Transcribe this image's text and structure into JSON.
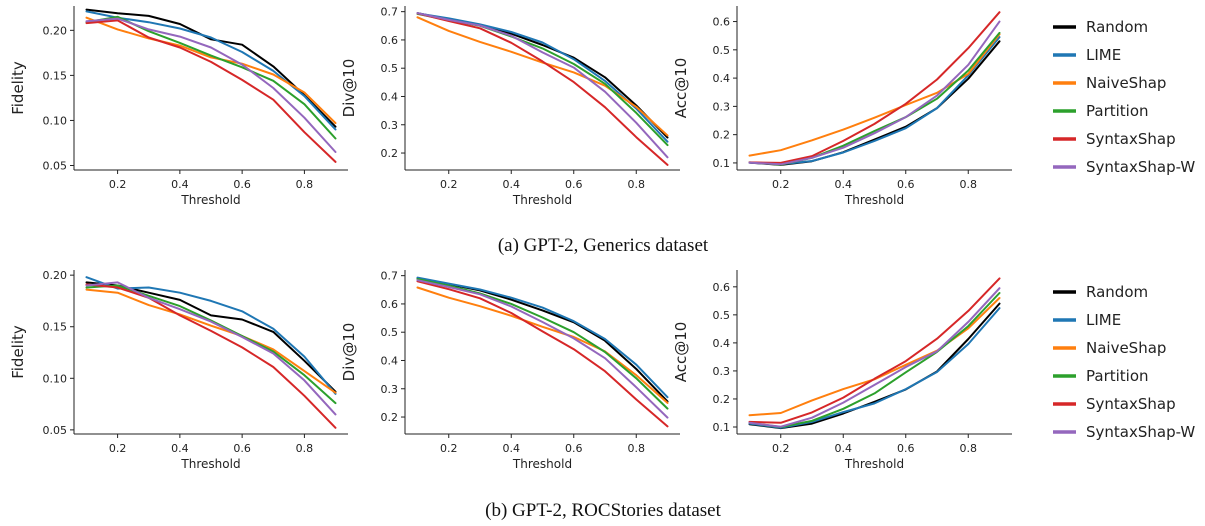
{
  "captions": [
    "(a) GPT-2, Generics dataset",
    "(b) GPT-2, ROCStories dataset"
  ],
  "colors": {
    "Random": "#000000",
    "LIME": "#1f77b4",
    "NaiveShap": "#ff7f0e",
    "Partition": "#2ca02c",
    "SyntaxShap": "#d62728",
    "SyntaxShap-W": "#9467bd"
  },
  "legend": [
    "Random",
    "LIME",
    "NaiveShap",
    "Partition",
    "SyntaxShap",
    "SyntaxShap-W"
  ],
  "chart_data": [
    {
      "type": "line",
      "panel": "a-fidelity",
      "xlabel": "Threshold",
      "ylabel": "Fidelity",
      "x": [
        0.1,
        0.2,
        0.3,
        0.4,
        0.5,
        0.6,
        0.7,
        0.8,
        0.9
      ],
      "xticks": [
        0.2,
        0.4,
        0.6,
        0.8
      ],
      "yticks": [
        0.05,
        0.1,
        0.15,
        0.2
      ],
      "ylim": [
        0.045,
        0.227
      ],
      "series": [
        {
          "name": "Random",
          "values": [
            0.223,
            0.219,
            0.216,
            0.207,
            0.19,
            0.184,
            0.16,
            0.128,
            0.093
          ]
        },
        {
          "name": "LIME",
          "values": [
            0.221,
            0.214,
            0.209,
            0.202,
            0.192,
            0.176,
            0.155,
            0.127,
            0.09
          ]
        },
        {
          "name": "NaiveShap",
          "values": [
            0.214,
            0.201,
            0.191,
            0.183,
            0.17,
            0.163,
            0.151,
            0.131,
            0.097
          ]
        },
        {
          "name": "Partition",
          "values": [
            0.209,
            0.215,
            0.199,
            0.186,
            0.172,
            0.159,
            0.144,
            0.118,
            0.08
          ]
        },
        {
          "name": "SyntaxShap",
          "values": [
            0.208,
            0.211,
            0.192,
            0.181,
            0.165,
            0.145,
            0.123,
            0.087,
            0.054
          ]
        },
        {
          "name": "SyntaxShap-W",
          "values": [
            0.21,
            0.213,
            0.201,
            0.193,
            0.181,
            0.162,
            0.136,
            0.103,
            0.065
          ]
        }
      ]
    },
    {
      "type": "line",
      "panel": "a-div",
      "xlabel": "Threshold",
      "ylabel": "Div@10",
      "x": [
        0.1,
        0.2,
        0.3,
        0.4,
        0.5,
        0.6,
        0.7,
        0.8,
        0.9
      ],
      "xticks": [
        0.2,
        0.4,
        0.6,
        0.8
      ],
      "yticks": [
        0.2,
        0.3,
        0.4,
        0.5,
        0.6,
        0.7
      ],
      "ylim": [
        0.14,
        0.72
      ],
      "series": [
        {
          "name": "Random",
          "values": [
            0.695,
            0.672,
            0.653,
            0.622,
            0.582,
            0.537,
            0.468,
            0.368,
            0.255
          ]
        },
        {
          "name": "LIME",
          "values": [
            0.694,
            0.676,
            0.655,
            0.628,
            0.591,
            0.532,
            0.455,
            0.357,
            0.24
          ]
        },
        {
          "name": "NaiveShap",
          "values": [
            0.68,
            0.632,
            0.593,
            0.558,
            0.52,
            0.485,
            0.438,
            0.363,
            0.262
          ]
        },
        {
          "name": "Partition",
          "values": [
            0.692,
            0.67,
            0.65,
            0.612,
            0.57,
            0.515,
            0.445,
            0.342,
            0.228
          ]
        },
        {
          "name": "SyntaxShap",
          "values": [
            0.694,
            0.667,
            0.641,
            0.59,
            0.524,
            0.451,
            0.362,
            0.256,
            0.158
          ]
        },
        {
          "name": "SyntaxShap-W",
          "values": [
            0.695,
            0.671,
            0.651,
            0.615,
            0.556,
            0.502,
            0.417,
            0.307,
            0.185
          ]
        }
      ]
    },
    {
      "type": "line",
      "panel": "a-acc",
      "xlabel": "Threshold",
      "ylabel": "Acc@10",
      "x": [
        0.1,
        0.2,
        0.3,
        0.4,
        0.5,
        0.6,
        0.7,
        0.8,
        0.9
      ],
      "xticks": [
        0.2,
        0.4,
        0.6,
        0.8
      ],
      "yticks": [
        0.1,
        0.2,
        0.3,
        0.4,
        0.5,
        0.6
      ],
      "ylim": [
        0.075,
        0.655
      ],
      "series": [
        {
          "name": "Random",
          "values": [
            0.101,
            0.093,
            0.106,
            0.138,
            0.183,
            0.228,
            0.294,
            0.398,
            0.53
          ]
        },
        {
          "name": "LIME",
          "values": [
            0.101,
            0.095,
            0.107,
            0.137,
            0.178,
            0.223,
            0.294,
            0.41,
            0.545
          ]
        },
        {
          "name": "NaiveShap",
          "values": [
            0.126,
            0.145,
            0.18,
            0.218,
            0.26,
            0.305,
            0.348,
            0.415,
            0.555
          ]
        },
        {
          "name": "Partition",
          "values": [
            0.102,
            0.094,
            0.118,
            0.161,
            0.213,
            0.262,
            0.327,
            0.427,
            0.56
          ]
        },
        {
          "name": "SyntaxShap",
          "values": [
            0.102,
            0.1,
            0.124,
            0.178,
            0.238,
            0.309,
            0.395,
            0.506,
            0.633
          ]
        },
        {
          "name": "SyntaxShap-W",
          "values": [
            0.101,
            0.095,
            0.118,
            0.154,
            0.205,
            0.262,
            0.338,
            0.447,
            0.6
          ]
        }
      ]
    },
    {
      "type": "line",
      "panel": "b-fidelity",
      "xlabel": "Threshold",
      "ylabel": "Fidelity",
      "x": [
        0.1,
        0.2,
        0.3,
        0.4,
        0.5,
        0.6,
        0.7,
        0.8,
        0.9
      ],
      "xticks": [
        0.2,
        0.4,
        0.6,
        0.8
      ],
      "yticks": [
        0.05,
        0.1,
        0.15,
        0.2
      ],
      "ylim": [
        0.046,
        0.205
      ],
      "series": [
        {
          "name": "Random",
          "values": [
            0.193,
            0.19,
            0.183,
            0.176,
            0.161,
            0.157,
            0.145,
            0.117,
            0.087
          ]
        },
        {
          "name": "LIME",
          "values": [
            0.198,
            0.187,
            0.188,
            0.183,
            0.175,
            0.165,
            0.148,
            0.121,
            0.085
          ]
        },
        {
          "name": "NaiveShap",
          "values": [
            0.186,
            0.183,
            0.171,
            0.162,
            0.151,
            0.141,
            0.128,
            0.107,
            0.086
          ]
        },
        {
          "name": "Partition",
          "values": [
            0.188,
            0.19,
            0.18,
            0.17,
            0.156,
            0.141,
            0.126,
            0.103,
            0.076
          ]
        },
        {
          "name": "SyntaxShap",
          "values": [
            0.191,
            0.188,
            0.178,
            0.161,
            0.146,
            0.13,
            0.111,
            0.083,
            0.052
          ]
        },
        {
          "name": "SyntaxShap-W",
          "values": [
            0.19,
            0.193,
            0.178,
            0.167,
            0.155,
            0.14,
            0.124,
            0.098,
            0.065
          ]
        }
      ]
    },
    {
      "type": "line",
      "panel": "b-div",
      "xlabel": "Threshold",
      "ylabel": "Div@10",
      "x": [
        0.1,
        0.2,
        0.3,
        0.4,
        0.5,
        0.6,
        0.7,
        0.8,
        0.9
      ],
      "xticks": [
        0.2,
        0.4,
        0.6,
        0.8
      ],
      "yticks": [
        0.2,
        0.3,
        0.4,
        0.5,
        0.6,
        0.7
      ],
      "ylim": [
        0.14,
        0.72
      ],
      "series": [
        {
          "name": "Random",
          "values": [
            0.69,
            0.67,
            0.648,
            0.615,
            0.577,
            0.535,
            0.47,
            0.37,
            0.255
          ]
        },
        {
          "name": "LIME",
          "values": [
            0.693,
            0.672,
            0.651,
            0.622,
            0.587,
            0.539,
            0.476,
            0.385,
            0.27
          ]
        },
        {
          "name": "NaiveShap",
          "values": [
            0.658,
            0.622,
            0.592,
            0.558,
            0.519,
            0.483,
            0.432,
            0.348,
            0.25
          ]
        },
        {
          "name": "Partition",
          "values": [
            0.688,
            0.665,
            0.637,
            0.6,
            0.552,
            0.5,
            0.43,
            0.337,
            0.23
          ]
        },
        {
          "name": "SyntaxShap",
          "values": [
            0.68,
            0.652,
            0.62,
            0.568,
            0.503,
            0.44,
            0.362,
            0.262,
            0.167
          ]
        },
        {
          "name": "SyntaxShap-W",
          "values": [
            0.684,
            0.66,
            0.634,
            0.591,
            0.536,
            0.478,
            0.408,
            0.305,
            0.198
          ]
        }
      ]
    },
    {
      "type": "line",
      "panel": "b-acc",
      "xlabel": "Threshold",
      "ylabel": "Acc@10",
      "x": [
        0.1,
        0.2,
        0.3,
        0.4,
        0.5,
        0.6,
        0.7,
        0.8,
        0.9
      ],
      "xticks": [
        0.2,
        0.4,
        0.6,
        0.8
      ],
      "yticks": [
        0.1,
        0.2,
        0.3,
        0.4,
        0.5,
        0.6
      ],
      "ylim": [
        0.075,
        0.66
      ],
      "series": [
        {
          "name": "Random",
          "values": [
            0.11,
            0.096,
            0.112,
            0.148,
            0.19,
            0.234,
            0.298,
            0.414,
            0.54
          ]
        },
        {
          "name": "LIME",
          "values": [
            0.112,
            0.097,
            0.118,
            0.153,
            0.184,
            0.235,
            0.296,
            0.396,
            0.524
          ]
        },
        {
          "name": "NaiveShap",
          "values": [
            0.142,
            0.15,
            0.195,
            0.235,
            0.27,
            0.322,
            0.372,
            0.452,
            0.56
          ]
        },
        {
          "name": "Partition",
          "values": [
            0.115,
            0.1,
            0.122,
            0.165,
            0.22,
            0.295,
            0.368,
            0.46,
            0.578
          ]
        },
        {
          "name": "SyntaxShap",
          "values": [
            0.118,
            0.115,
            0.152,
            0.205,
            0.272,
            0.335,
            0.415,
            0.514,
            0.63
          ]
        },
        {
          "name": "SyntaxShap-W",
          "values": [
            0.115,
            0.101,
            0.133,
            0.187,
            0.25,
            0.314,
            0.37,
            0.475,
            0.595
          ]
        }
      ]
    }
  ]
}
